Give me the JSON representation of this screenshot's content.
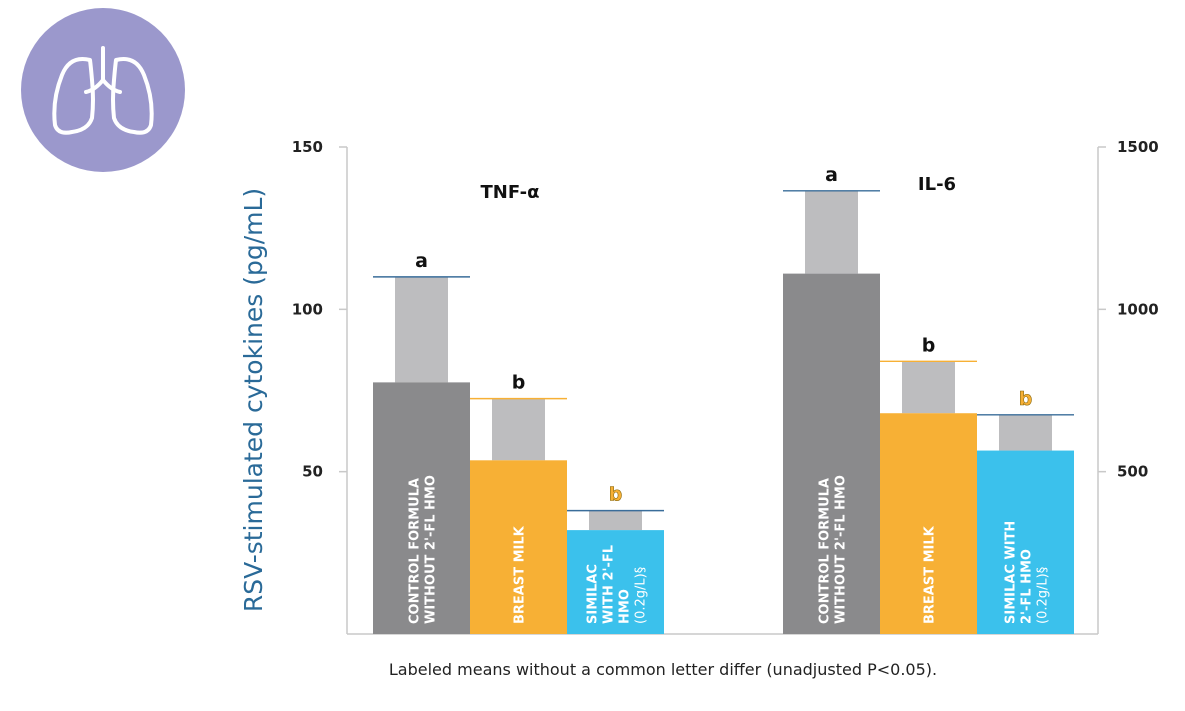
{
  "chart_data": {
    "type": "bar",
    "ylabel": "RSV-stimulated cytokines (pg/mL)",
    "footnote": "Labeled means without a common letter differ (unadjusted P<0.05).",
    "colors": {
      "control": "#8a8a8c",
      "breast_milk": "#f7b035",
      "similac": "#3bc1ec",
      "error": "#bdbdbf"
    },
    "groups": [
      {
        "title": "TNF-α",
        "axis": "left",
        "ylim": [
          0,
          150
        ],
        "ticks": [
          "50",
          "100",
          "150"
        ],
        "tick_values": [
          50,
          100,
          150
        ],
        "bars": [
          {
            "series": "control",
            "label": [
              "CONTROL FORMULA",
              "WITHOUT 2'-FL HMO"
            ],
            "value": 77.5,
            "error_top": 110,
            "letter": "a",
            "color_key": "control"
          },
          {
            "series": "breast_milk",
            "label": [
              "BREAST MILK"
            ],
            "value": 53.5,
            "error_top": 72.5,
            "letter": "b",
            "color_key": "breast_milk"
          },
          {
            "series": "similac",
            "label": [
              "SIMILAC",
              "WITH 2'-FL",
              "HMO",
              "(0.2g/L)§"
            ],
            "value": 32,
            "error_top": 38,
            "letter": "b",
            "color_key": "similac"
          }
        ]
      },
      {
        "title": "IL-6",
        "axis": "right",
        "ylim": [
          0,
          1500
        ],
        "ticks": [
          "500",
          "1000",
          "1500"
        ],
        "tick_values": [
          500,
          1000,
          1500
        ],
        "bars": [
          {
            "series": "control",
            "label": [
              "CONTROL FORMULA",
              "WITHOUT 2'-FL HMO"
            ],
            "value": 1110,
            "error_top": 1365,
            "letter": "a",
            "color_key": "control"
          },
          {
            "series": "breast_milk",
            "label": [
              "BREAST MILK"
            ],
            "value": 680,
            "error_top": 840,
            "letter": "b",
            "color_key": "breast_milk"
          },
          {
            "series": "similac",
            "label": [
              "SIMILAC WITH",
              "2'-FL HMO",
              "(0.2g/L)§"
            ],
            "value": 565,
            "error_top": 675,
            "letter": "b",
            "color_key": "similac"
          }
        ]
      }
    ]
  }
}
